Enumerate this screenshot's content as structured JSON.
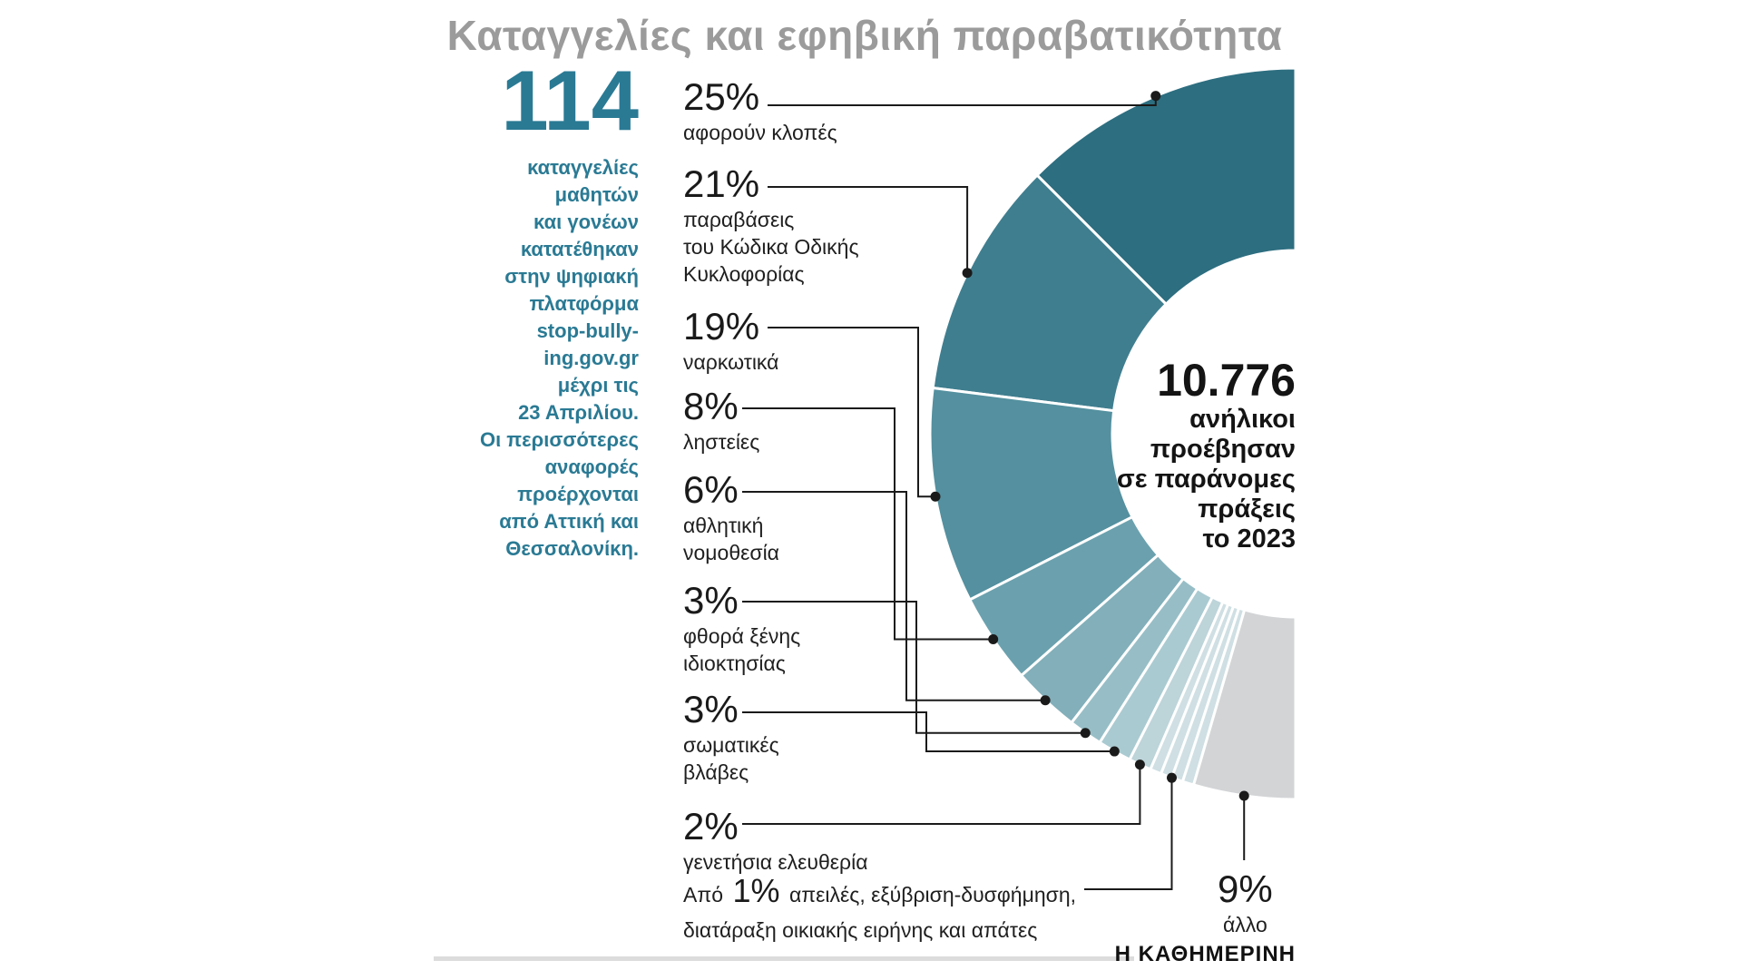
{
  "title": "Καταγγελίες και εφηβική παραβατικότητα",
  "colors": {
    "accent": "#2a7a94",
    "title_gray": "#9b9b9b",
    "text": "#1a1a1a",
    "divider": "#dcdcdc"
  },
  "sidebar": {
    "big_number": "114",
    "lines": [
      "καταγγελίες",
      "μαθητών",
      "και γονέων",
      "κατατέθηκαν",
      "στην ψηφιακή",
      "πλατφόρμα",
      "stop-bully-",
      "ing.gov.gr",
      "μέχρι τις",
      "23 Απριλίου.",
      "Οι περισσότερες",
      "αναφορές",
      "προέρχονται",
      "από Αττική και",
      "Θεσσαλονίκη."
    ]
  },
  "center": {
    "total": "10.776",
    "lines": [
      "ανήλικοι",
      "προέβησαν",
      "σε παράνομες",
      "πράξεις",
      "το 2023"
    ]
  },
  "callouts": [
    {
      "pct": "25%",
      "lines": [
        "αφορούν κλοπές"
      ]
    },
    {
      "pct": "21%",
      "lines": [
        "παραβάσεις",
        "του Κώδικα Οδικής",
        "Κυκλοφορίας"
      ]
    },
    {
      "pct": "19%",
      "lines": [
        "ναρκωτικά"
      ]
    },
    {
      "pct": "8%",
      "lines": [
        "ληστείες"
      ]
    },
    {
      "pct": "6%",
      "lines": [
        "αθλητική",
        "νομοθεσία"
      ]
    },
    {
      "pct": "3%",
      "lines": [
        "φθορά ξένης",
        "ιδιοκτησίας"
      ]
    },
    {
      "pct": "3%",
      "lines": [
        "σωματικές",
        "βλάβες"
      ]
    },
    {
      "pct": "2%",
      "lines": [
        "γενετήσια ελευθερία"
      ]
    },
    {
      "prefix": "Από",
      "pct": "1%",
      "rest": "απειλές, εξύβριση-δυσφήμηση,",
      "line2": "διατάραξη οικιακής ειρήνης και απάτες"
    },
    {
      "pct": "9%",
      "lines": [
        "άλλο"
      ]
    }
  ],
  "footer": {
    "brand": "Η ΚΑΘΗΜΕΡΙΝΗ"
  },
  "chart_data": {
    "type": "pie",
    "variant": "half-donut",
    "title": "Καταγγελίες και εφηβική παραβατικότητα",
    "center_value": "10.776",
    "center_label": "ανήλικοι προέβησαν σε παράνομες πράξεις το 2023",
    "unit": "%",
    "segments": [
      {
        "value": 25,
        "label": "αφορούν κλοπές",
        "color": "#2d6e80"
      },
      {
        "value": 21,
        "label": "παραβάσεις του Κώδικα Οδικής Κυκλοφορίας",
        "color": "#3f7e8f"
      },
      {
        "value": 19,
        "label": "ναρκωτικά",
        "color": "#54909f"
      },
      {
        "value": 8,
        "label": "ληστείες",
        "color": "#6ba1ae"
      },
      {
        "value": 6,
        "label": "αθλητική νομοθεσία",
        "color": "#82afba"
      },
      {
        "value": 3,
        "label": "φθορά ξένης ιδιοκτησίας",
        "color": "#97bec6"
      },
      {
        "value": 3,
        "label": "σωματικές βλάβες",
        "color": "#aacad1"
      },
      {
        "value": 2,
        "label": "γενετήσια ελευθερία",
        "color": "#bdd4d9"
      },
      {
        "value": 4,
        "label": "Από 1% απειλές, εξύβριση-δυσφήμηση, διατάραξη οικιακής ειρήνης και απάτες",
        "color": "#cfdfe3",
        "sub_slices": 4
      },
      {
        "value": 9,
        "label": "άλλο",
        "color": "#d2d4d6"
      }
    ],
    "annotation": "114 καταγγελίες μαθητών και γονέων κατατέθηκαν στην ψηφιακή πλατφόρμα stop-bullying.gov.gr μέχρι τις 23 Απριλίου. Οι περισσότερες αναφορές προέρχονται από Αττική και Θεσσαλονίκη.",
    "source": "Η ΚΑΘΗΜΕΡΙΝΗ"
  }
}
